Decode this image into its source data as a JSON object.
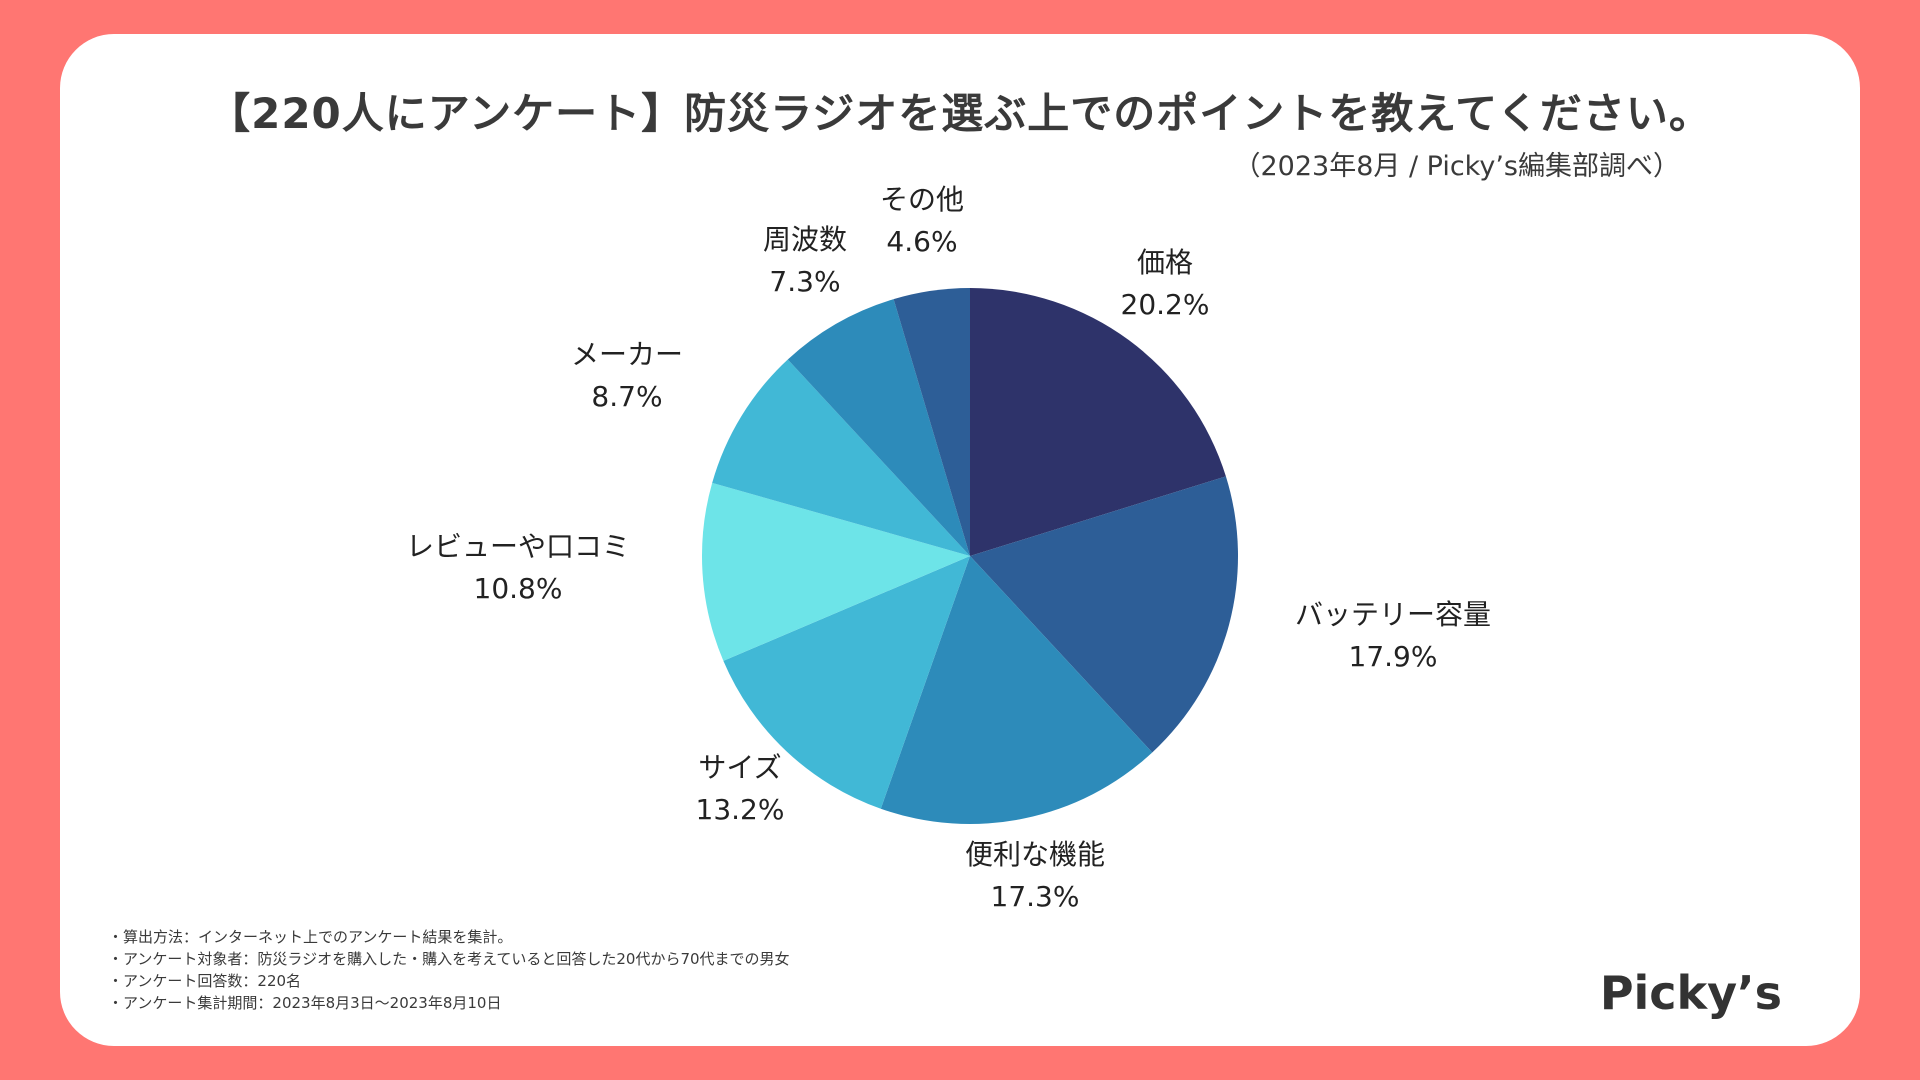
{
  "chart_data": {
    "type": "pie",
    "title": "【220人にアンケート】防災ラジオを選ぶ上でのポイントを教えてください。",
    "subtitle": "（2023年8月 / Picky’s編集部調べ）",
    "slices": [
      {
        "label": "価格",
        "value": 20.2,
        "display": "20.2%",
        "color": "#2E336A"
      },
      {
        "label": "バッテリー容量",
        "value": 17.9,
        "display": "17.9%",
        "color": "#2D5E97"
      },
      {
        "label": "便利な機能",
        "value": 17.3,
        "display": "17.3%",
        "color": "#2D8BBA"
      },
      {
        "label": "サイズ",
        "value": 13.2,
        "display": "13.2%",
        "color": "#41B8D6"
      },
      {
        "label": "レビューや口コミ",
        "value": 10.8,
        "display": "10.8%",
        "color": "#6DE4E8"
      },
      {
        "label": "メーカー",
        "value": 8.7,
        "display": "8.7%",
        "color": "#41B8D6"
      },
      {
        "label": "周波数",
        "value": 7.3,
        "display": "7.3%",
        "color": "#2D8BBA"
      },
      {
        "label": "その他",
        "value": 4.6,
        "display": "4.6%",
        "color": "#2D5E97"
      }
    ]
  },
  "notes": [
    "・算出方法：インターネット上でのアンケート結果を集計。",
    "・アンケート対象者：防災ラジオを購入した・購入を考えていると回答した20代から70代までの男女",
    "・アンケート回答数：220名",
    "・アンケート集計期間：2023年8月3日〜2023年8月10日"
  ],
  "logo": "Picky’s",
  "colors": {
    "background": "#FF7672",
    "card": "#FFFFFF"
  }
}
